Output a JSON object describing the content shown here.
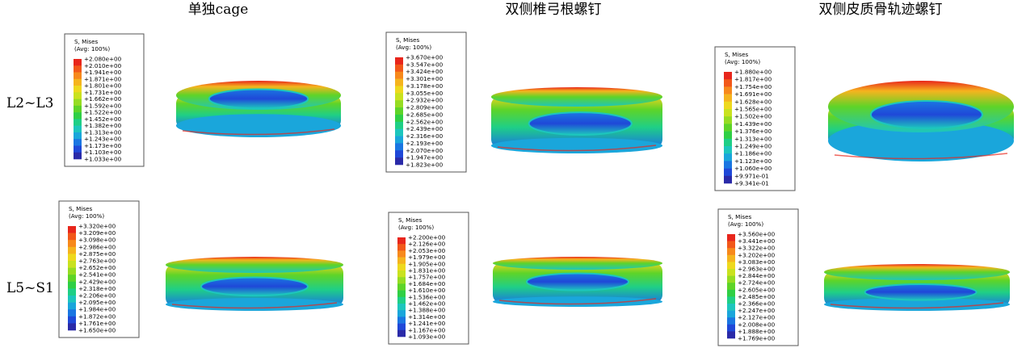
{
  "columns": [
    "单独cage",
    "双侧椎弓根螺钉",
    "双侧皮质骨轨迹螺钉"
  ],
  "rows": [
    "L2~L3",
    "L5~S1"
  ],
  "legends": [
    {
      "title": "S, Mises",
      "average": "(Avg: 100%)",
      "labels": [
        "+2.080e+00",
        "+2.010e+00",
        "+1.941e+00",
        "+1.871e+00",
        "+1.801e+00",
        "+1.731e+00",
        "+1.662e+00",
        "+1.592e+00",
        "+1.522e+00",
        "+1.452e+00",
        "+1.382e+00",
        "+1.313e+00",
        "+1.243e+00",
        "+1.173e+00",
        "+1.103e+00",
        "+1.033e+00"
      ]
    },
    {
      "title": "S, Mises",
      "average": "(Avg: 100%)",
      "labels": [
        "+3.670e+00",
        "+3.547e+00",
        "+3.424e+00",
        "+3.301e+00",
        "+3.178e+00",
        "+3.055e+00",
        "+2.932e+00",
        "+2.809e+00",
        "+2.685e+00",
        "+2.562e+00",
        "+2.439e+00",
        "+2.316e+00",
        "+2.193e+00",
        "+2.070e+00",
        "+1.947e+00",
        "+1.823e+00"
      ]
    },
    {
      "title": "S, Mises",
      "average": "(Avg: 100%)",
      "labels": [
        "+1.880e+00",
        "+1.817e+00",
        "+1.754e+00",
        "+1.691e+00",
        "+1.628e+00",
        "+1.565e+00",
        "+1.502e+00",
        "+1.439e+00",
        "+1.376e+00",
        "+1.313e+00",
        "+1.249e+00",
        "+1.186e+00",
        "+1.123e+00",
        "+1.060e+00",
        "+9.971e-01",
        "+9.341e-01"
      ]
    },
    {
      "title": "S, Mises",
      "average": "(Avg: 100%)",
      "labels": [
        "+3.320e+00",
        "+3.209e+00",
        "+3.098e+00",
        "+2.986e+00",
        "+2.875e+00",
        "+2.763e+00",
        "+2.652e+00",
        "+2.541e+00",
        "+2.429e+00",
        "+2.318e+00",
        "+2.206e+00",
        "+2.095e+00",
        "+1.984e+00",
        "+1.872e+00",
        "+1.761e+00",
        "+1.650e+00"
      ]
    },
    {
      "title": "S, Mises",
      "average": "(Avg: 100%)",
      "labels": [
        "+2.200e+00",
        "+2.126e+00",
        "+2.053e+00",
        "+1.979e+00",
        "+1.905e+00",
        "+1.831e+00",
        "+1.757e+00",
        "+1.684e+00",
        "+1.610e+00",
        "+1.536e+00",
        "+1.462e+00",
        "+1.388e+00",
        "+1.314e+00",
        "+1.241e+00",
        "+1.167e+00",
        "+1.093e+00"
      ]
    },
    {
      "title": "S, Mises",
      "average": "(Avg: 100%)",
      "labels": [
        "+3.560e+00",
        "+3.441e+00",
        "+3.322e+00",
        "+3.202e+00",
        "+3.083e+00",
        "+2.963e+00",
        "+2.844e+00",
        "+2.724e+00",
        "+2.605e+00",
        "+2.485e+00",
        "+2.366e+00",
        "+2.247e+00",
        "+2.127e+00",
        "+2.008e+00",
        "+1.888e+00",
        "+1.769e+00"
      ]
    }
  ]
}
